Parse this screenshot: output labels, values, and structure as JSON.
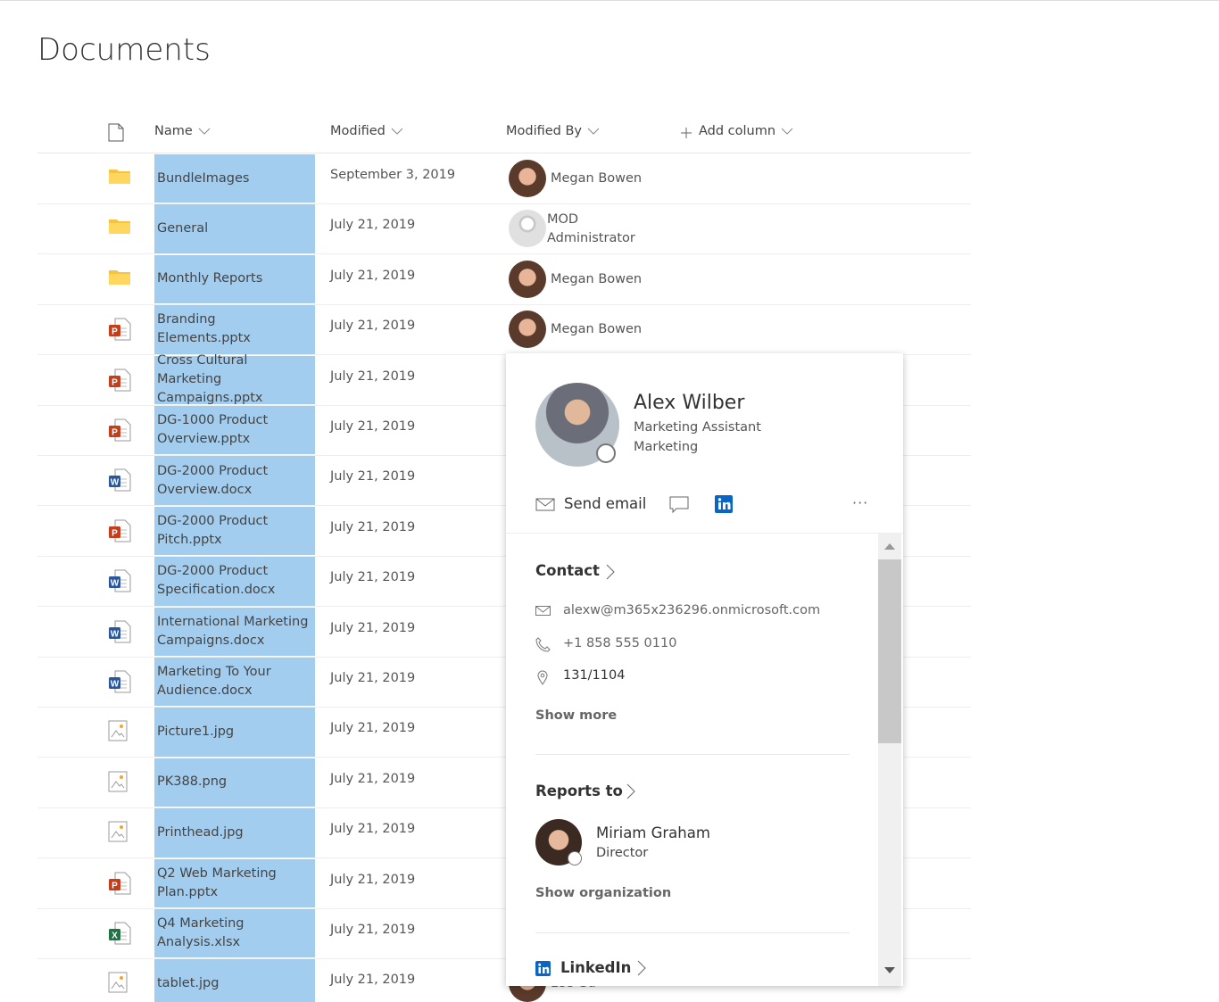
{
  "page": {
    "title": "Documents"
  },
  "table": {
    "columns": [
      "Name",
      "Modified",
      "Modified By",
      "Add column"
    ],
    "rows": [
      {
        "name": "BundleImages",
        "modified": "September 3, 2019",
        "modified_by": "Megan Bowen"
      },
      {
        "name": "General",
        "modified": "July 21, 2019",
        "modified_by": "MOD Administrator"
      },
      {
        "name": "Monthly Reports",
        "modified": "July 21, 2019",
        "modified_by": "Megan Bowen"
      },
      {
        "name": "Branding Elements.pptx",
        "modified": "July 21, 2019",
        "modified_by": "Megan Bowen"
      },
      {
        "name": "Cross Cultural Marketing Campaigns.pptx",
        "modified": "July 21, 2019"
      },
      {
        "name": "DG-1000 Product Overview.pptx",
        "modified": "July 21, 2019"
      },
      {
        "name": "DG-2000 Product Overview.docx",
        "modified": "July 21, 2019"
      },
      {
        "name": "DG-2000 Product Pitch.pptx",
        "modified": "July 21, 2019"
      },
      {
        "name": "DG-2000 Product Specification.docx",
        "modified": "July 21, 2019"
      },
      {
        "name": "International Marketing Campaigns.docx",
        "modified": "July 21, 2019"
      },
      {
        "name": "Marketing To Your Audience.docx",
        "modified": "July 21, 2019"
      },
      {
        "name": "Picture1.jpg",
        "modified": "July 21, 2019"
      },
      {
        "name": "PK388.png",
        "modified": "July 21, 2019"
      },
      {
        "name": "Printhead.jpg",
        "modified": "July 21, 2019"
      },
      {
        "name": "Q2 Web Marketing Plan.pptx",
        "modified": "July 21, 2019"
      },
      {
        "name": "Q4 Marketing Analysis.xlsx",
        "modified": "July 21, 2019"
      },
      {
        "name": "tablet.jpg",
        "modified": "July 21, 2019",
        "modified_by": "Lee Gu"
      }
    ]
  },
  "profile_card": {
    "name": "Alex Wilber",
    "job_title": "Marketing Assistant",
    "department": "Marketing",
    "send_email": "Send email",
    "contact": {
      "heading": "Contact",
      "email": "alexw@m365x236296.onmicrosoft.com",
      "phone": "+1 858 555 0110",
      "location": "131/1104",
      "show_more": "Show more"
    },
    "reports_to": {
      "heading": "Reports to",
      "name": "Miriam Graham",
      "title": "Director",
      "show_organization": "Show organization"
    },
    "linkedin": "LinkedIn"
  }
}
